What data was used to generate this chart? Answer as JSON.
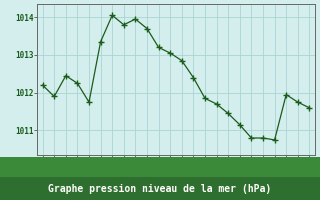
{
  "x": [
    0,
    1,
    2,
    3,
    4,
    5,
    6,
    7,
    8,
    9,
    10,
    11,
    12,
    13,
    14,
    15,
    16,
    17,
    18,
    19,
    20,
    21,
    22,
    23
  ],
  "y": [
    1012.2,
    1011.9,
    1012.45,
    1012.25,
    1011.75,
    1013.35,
    1014.05,
    1013.8,
    1013.95,
    1013.7,
    1013.2,
    1013.05,
    1012.85,
    1012.4,
    1011.85,
    1011.7,
    1011.45,
    1011.15,
    1010.8,
    1010.8,
    1010.75,
    1011.95,
    1011.75,
    1011.6
  ],
  "line_color": "#1a5c1a",
  "marker": "+",
  "marker_size": 4,
  "marker_color": "#1a5c1a",
  "background_color": "#d4eeee",
  "grid_color": "#aad4d4",
  "axis_line_color": "#666666",
  "xlabel": "Graphe pression niveau de la mer (hPa)",
  "xlabel_color": "#1a5c1a",
  "xlabel_bg": "#2a6b2a",
  "ylabel_ticks": [
    1011,
    1012,
    1013,
    1014
  ],
  "ylim": [
    1010.35,
    1014.35
  ],
  "xlim": [
    -0.5,
    23.5
  ],
  "tick_color": "#1a5c1a",
  "tick_fontsize": 5.5,
  "xlabel_fontsize": 7.0,
  "linewidth": 0.9
}
